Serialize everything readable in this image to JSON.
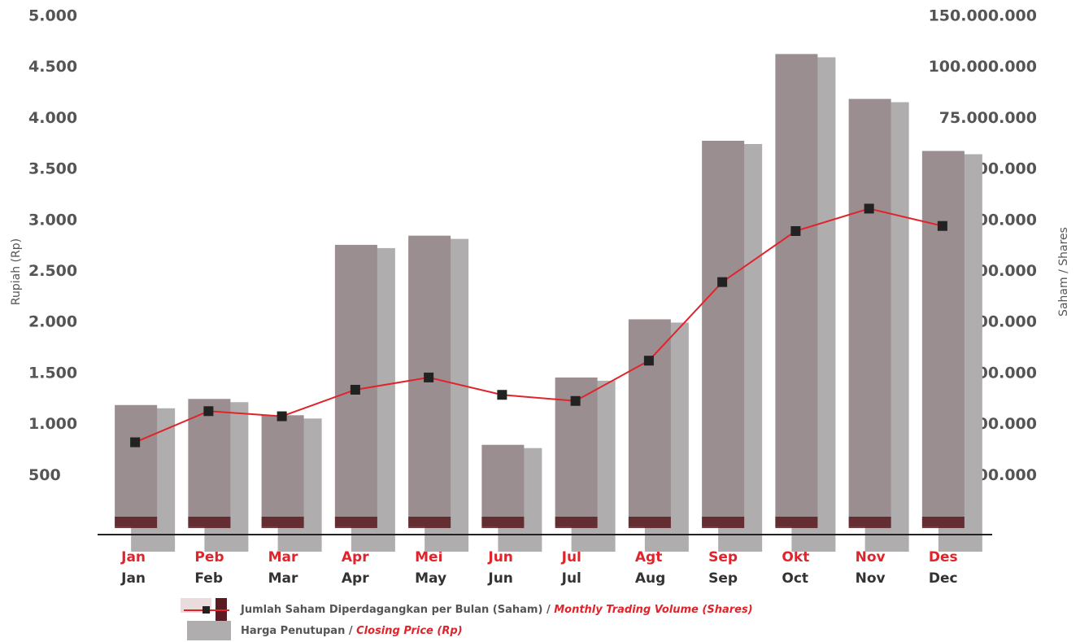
{
  "chart_data": {
    "type": "bar",
    "y_label": "Rupiah (Rp)",
    "y2_label": "Saham / Shares",
    "categories": [
      "Jan",
      "Feb",
      "Mar",
      "Apr",
      "May",
      "Jun",
      "Jul",
      "Aug",
      "Sep",
      "Oct",
      "Nov",
      "Dec"
    ],
    "categories_local": [
      "Jan",
      "Peb",
      "Mar",
      "Apr",
      "Mei",
      "Jun",
      "Jul",
      "Agt",
      "Sep",
      "Okt",
      "Nov",
      "Des"
    ],
    "ylim": [
      0,
      5000
    ],
    "yticks": [
      500,
      {
        "value": 1000,
        "label": "1.000"
      },
      {
        "value": 1500,
        "label": "1.500"
      },
      {
        "value": 2000,
        "label": "2.000"
      },
      {
        "value": 2500,
        "label": "2.500"
      },
      {
        "value": 3000,
        "label": "3.000"
      },
      {
        "value": 3500,
        "label": "3.500"
      },
      {
        "value": 4000,
        "label": "4.000"
      },
      {
        "value": 4500,
        "label": "4.500"
      },
      {
        "value": 5000,
        "label": "5.000"
      }
    ],
    "y2lim": [
      0,
      150000000
    ],
    "y2ticks": [
      {
        "value": 1000000,
        "label": "1.000.000"
      },
      {
        "value": 5000000,
        "label": "5.000.000"
      },
      {
        "value": 10000000,
        "label": "10.000.000"
      },
      {
        "value": 20000000,
        "label": "20.000.000"
      },
      {
        "value": 30000000,
        "label": "30.000.000"
      },
      {
        "value": 40000000,
        "label": "40.000.000"
      },
      {
        "value": 50000000,
        "label": "50.000.000"
      },
      {
        "value": 75000000,
        "label": "75.000.000"
      },
      {
        "value": 100000000,
        "label": "100.000.000"
      },
      {
        "value": 150000000,
        "label": "150.000.000"
      }
    ],
    "legend_separator": "/",
    "series": [
      {
        "name": "Harga Penutupan",
        "name_en": "Closing Price (Rp)",
        "type": "bar",
        "color": "#9a8e90",
        "values": [
          1190,
          1250,
          1090,
          2760,
          2850,
          800,
          1460,
          2030,
          3780,
          4630,
          4190,
          3680
        ]
      },
      {
        "name": "Jumlah Saham Diperdagangkan per Bulan (Saham)",
        "name_en": "Monthly  Trading Volume (Shares)",
        "type": "line",
        "axis": "y2",
        "color": "#e0242b",
        "values": [
          3600000,
          6300000,
          5800000,
          8400000,
          9600000,
          7900000,
          7300000,
          12500000,
          27900000,
          37900000,
          42300000,
          38900000
        ]
      }
    ]
  }
}
